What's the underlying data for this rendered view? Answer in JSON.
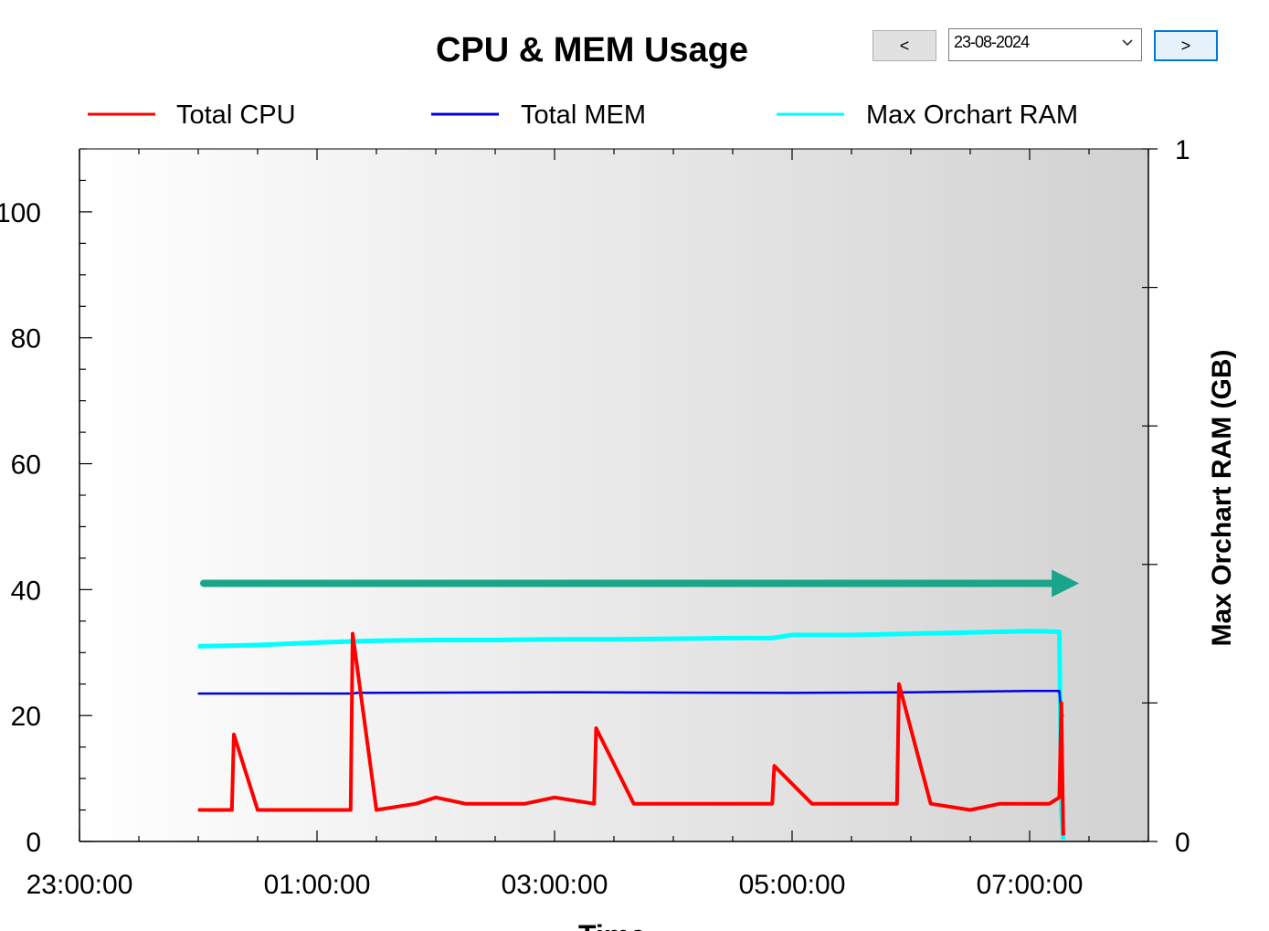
{
  "controls": {
    "prev_label": "<",
    "next_label": ">",
    "date_value": "23-08-2024"
  },
  "colors": {
    "cpu": "#ff0000",
    "mem": "#0000dd",
    "ram": "#00ffff",
    "arrow": "#1aa58a",
    "bg_left": "#ffffff",
    "bg_right": "#d2d2d2"
  },
  "chart_data": {
    "type": "line",
    "title": "CPU & MEM Usage",
    "xlabel": "Time",
    "ylabel_right": "Max Orchart RAM (GB)",
    "x_ticks": [
      "23:00:00",
      "01:00:00",
      "03:00:00",
      "05:00:00",
      "07:00:00"
    ],
    "x_range": [
      "23:00:00",
      "08:00:00"
    ],
    "y_left_ticks": [
      0,
      20,
      40,
      60,
      80,
      100
    ],
    "y_left_range": [
      0,
      110
    ],
    "y_right_ticks": [
      0,
      1
    ],
    "y_right_range": [
      0,
      1
    ],
    "legend_placement": "top",
    "legend": [
      "Total CPU",
      "Total MEM",
      "Max Orchart RAM"
    ],
    "series": [
      {
        "name": "Total CPU",
        "axis": "left",
        "x": [
          "00:00",
          "00:17",
          "00:18",
          "00:30",
          "01:00",
          "01:17",
          "01:18",
          "01:30",
          "01:50",
          "02:00",
          "02:15",
          "02:30",
          "02:45",
          "03:00",
          "03:20",
          "03:21",
          "03:40",
          "04:00",
          "04:20",
          "04:40",
          "04:50",
          "04:51",
          "05:10",
          "05:30",
          "05:45",
          "05:53",
          "05:54",
          "06:10",
          "06:30",
          "06:45",
          "07:00",
          "07:10",
          "07:15",
          "07:16",
          "07:17"
        ],
        "values": [
          5,
          5,
          17,
          5,
          5,
          5,
          33,
          5,
          6,
          7,
          6,
          6,
          6,
          7,
          6,
          18,
          6,
          6,
          6,
          6,
          6,
          12,
          6,
          6,
          6,
          6,
          25,
          6,
          5,
          6,
          6,
          6,
          7,
          22,
          1
        ]
      },
      {
        "name": "Total MEM",
        "axis": "left",
        "x": [
          "00:00",
          "01:18",
          "01:20",
          "03:00",
          "05:00",
          "06:00",
          "06:30",
          "07:00",
          "07:15",
          "07:16",
          "07:17"
        ],
        "values": [
          23.5,
          23.5,
          23.6,
          23.7,
          23.6,
          23.7,
          23.8,
          23.9,
          23.9,
          20,
          20
        ]
      },
      {
        "name": "Max Orchart RAM",
        "axis": "left",
        "x": [
          "00:00",
          "00:30",
          "01:00",
          "01:30",
          "02:00",
          "02:30",
          "03:00",
          "03:30",
          "04:00",
          "04:30",
          "04:50",
          "05:00",
          "05:30",
          "06:00",
          "06:30",
          "07:00",
          "07:15",
          "07:16",
          "07:17"
        ],
        "values": [
          31,
          31.2,
          31.6,
          31.9,
          32,
          32,
          32.1,
          32.1,
          32.2,
          32.3,
          32.3,
          32.8,
          32.8,
          33,
          33.2,
          33.4,
          33.3,
          5,
          0.3
        ]
      }
    ],
    "annotation": {
      "type": "arrow",
      "from": [
        "00:00",
        41
      ],
      "to": [
        "07:25",
        41
      ]
    }
  }
}
